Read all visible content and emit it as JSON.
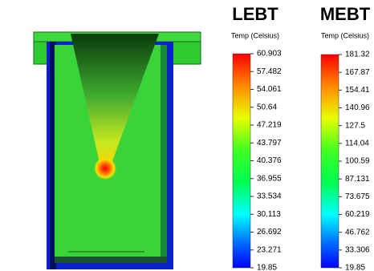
{
  "legends": [
    {
      "title": "LEBT",
      "unit": "Temp (Celsius)",
      "ticks": [
        60.903,
        57.482,
        54.061,
        50.64,
        47.219,
        43.797,
        40.376,
        36.955,
        33.534,
        30.113,
        26.692,
        23.271,
        19.85
      ]
    },
    {
      "title": "MEBT",
      "unit": "Temp (Celsius)",
      "ticks": [
        181.32,
        167.87,
        154.41,
        140.96,
        127.5,
        114.04,
        100.59,
        87.131,
        73.675,
        60.219,
        46.762,
        33.306,
        19.85
      ]
    }
  ]
}
